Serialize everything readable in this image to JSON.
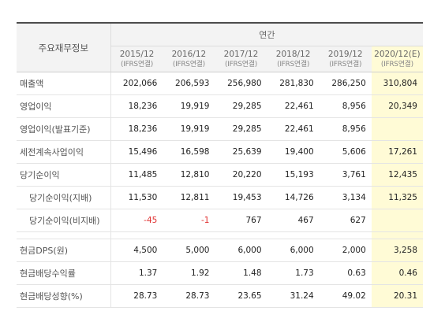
{
  "header": {
    "title": "주요재무정보",
    "group": "연간",
    "columns": [
      {
        "period": "2015/12",
        "basis": "(IFRS연결)",
        "estimate": false
      },
      {
        "period": "2016/12",
        "basis": "(IFRS연결)",
        "estimate": false
      },
      {
        "period": "2017/12",
        "basis": "(IFRS연결)",
        "estimate": false
      },
      {
        "period": "2018/12",
        "basis": "(IFRS연결)",
        "estimate": false
      },
      {
        "period": "2019/12",
        "basis": "(IFRS연결)",
        "estimate": false
      },
      {
        "period": "2020/12(E)",
        "basis": "(IFRS연결)",
        "estimate": true
      }
    ]
  },
  "rows": [
    {
      "label": "매출액",
      "values": [
        "202,066",
        "206,593",
        "256,980",
        "281,830",
        "286,250",
        "310,804"
      ]
    },
    {
      "label": "영업이익",
      "values": [
        "18,236",
        "19,919",
        "29,285",
        "22,461",
        "8,956",
        "20,349"
      ]
    },
    {
      "label": "영업이익(발표기준)",
      "values": [
        "18,236",
        "19,919",
        "29,285",
        "22,461",
        "8,956",
        ""
      ]
    },
    {
      "label": "세전계속사업이익",
      "values": [
        "15,496",
        "16,598",
        "25,639",
        "19,400",
        "5,606",
        "17,261"
      ]
    },
    {
      "label": "당기순이익",
      "values": [
        "11,485",
        "12,810",
        "20,220",
        "15,193",
        "3,761",
        "12,435"
      ]
    },
    {
      "label": "당기순이익(지배)",
      "values": [
        "11,530",
        "12,811",
        "19,453",
        "14,726",
        "3,134",
        "11,325"
      ]
    },
    {
      "label": "당기순이익(비지배)",
      "values": [
        "-45",
        "-1",
        "767",
        "467",
        "627",
        ""
      ]
    },
    {
      "label": "현금DPS(원)",
      "values": [
        "4,500",
        "5,000",
        "6,000",
        "6,000",
        "2,000",
        "3,258"
      ]
    },
    {
      "label": "현금배당수익률",
      "values": [
        "1.37",
        "1.92",
        "1.48",
        "1.73",
        "0.63",
        "0.46"
      ]
    },
    {
      "label": "현금배당성향(%)",
      "values": [
        "28.73",
        "28.73",
        "23.65",
        "31.24",
        "49.02",
        "20.31"
      ]
    }
  ],
  "colors": {
    "estimate_bg": "#fffbd6",
    "negative": "#e03131",
    "header_bg": "#f3f3f3"
  }
}
